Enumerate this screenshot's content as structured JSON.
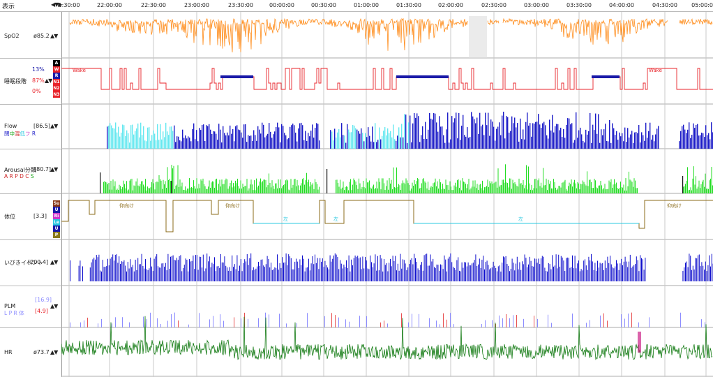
{
  "toolbar": {
    "menu_label": "表示",
    "step_arrows": "◀▼▶"
  },
  "time_axis": {
    "ticks": [
      "1:30:00",
      "22:00:00",
      "22:30:00",
      "23:00:00",
      "23:30:00",
      "00:00:00",
      "00:30:00",
      "01:00:00",
      "01:30:00",
      "02:00:00",
      "02:30:00",
      "03:00:00",
      "03:30:00",
      "04:00:00",
      "04:30:00",
      "05:00:0"
    ]
  },
  "colors": {
    "spo2": "#ff8c1a",
    "stage": "#e8232a",
    "stage_rem": "#1a1aa8",
    "flow_blue": "#1c1cc8",
    "flow_cyan": "#66e8f0",
    "arousal": "#22dd22",
    "position": "#8b6b1a",
    "position_left": "#28c8e0",
    "snore": "#0d0dcc",
    "plm": "#8c8cff",
    "hr": "#127a12"
  },
  "channels": {
    "spo2": {
      "name": "SpO2",
      "value": "ø85.2",
      "arrows": "▲▼",
      "scale_top": "100",
      "scale_bottom": "70"
    },
    "stage": {
      "name": "睡眠段階",
      "arrows": "▲▼",
      "pct_rem": "13%",
      "pct_light": "87%",
      "pct_deep": "0%",
      "levels": [
        "A",
        "W",
        "R",
        "N1",
        "N2",
        "N3"
      ],
      "wake_label": "Wake"
    },
    "flow": {
      "name": "Flow",
      "value": "[86.5]",
      "arrows": "▲▼",
      "legend": [
        "閉",
        "中",
        "混",
        "低",
        "フ",
        "R"
      ],
      "scale_top": "60",
      "scale_bottom": "0"
    },
    "arousal": {
      "name": "Arousal分類",
      "value": "[80.7]",
      "arrows": "▲▼",
      "legend": [
        "A",
        "R",
        "P",
        "D",
        "C",
        "S"
      ],
      "scale_top": "30",
      "scale_bottom": "0"
    },
    "position": {
      "name": "体位",
      "value": "[3.3]",
      "levels": [
        "Su",
        "U",
        "Ri",
        "Le",
        "U",
        "P"
      ],
      "label_supine": "仰向け",
      "label_left": "左"
    },
    "snore": {
      "name": "いびきイベント",
      "value": "[200.4]",
      "arrows": "▲▼"
    },
    "plm": {
      "name": "PLM",
      "value_top": "[16.9]",
      "value_bottom": "[4.9]",
      "arrows": "▲▼",
      "legend": [
        "L",
        "P",
        "R",
        "体"
      ],
      "scale_top": "188",
      "scale_bottom": "0"
    },
    "hr": {
      "name": "HR",
      "value": "ø73.7",
      "arrows": "▲▼",
      "scale_top": "120",
      "scale_bottom": "40"
    }
  },
  "left_handle": "<"
}
